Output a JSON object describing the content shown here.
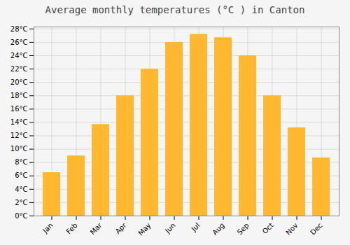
{
  "chart_data": {
    "type": "bar",
    "title": "Average monthly temperatures (°C ) in Canton",
    "categories": [
      "Jan",
      "Feb",
      "Mar",
      "Apr",
      "May",
      "Jun",
      "Jul",
      "Aug",
      "Sep",
      "Oct",
      "Nov",
      "Dec"
    ],
    "values": [
      6.5,
      9.0,
      13.7,
      18.0,
      22.0,
      26.0,
      27.2,
      26.7,
      24.0,
      18.0,
      13.2,
      8.7
    ],
    "color": "#FFB830",
    "ylim": [
      0,
      28.3
    ],
    "yticks": [
      {
        "value": 0,
        "label": "0°C"
      },
      {
        "value": 2,
        "label": "2°C"
      },
      {
        "value": 4,
        "label": "4°C"
      },
      {
        "value": 6,
        "label": "6°C"
      },
      {
        "value": 8,
        "label": "8°C"
      },
      {
        "value": 10,
        "label": "10°C"
      },
      {
        "value": 12,
        "label": "12°C"
      },
      {
        "value": 14,
        "label": "14°C"
      },
      {
        "value": 16,
        "label": "16°C"
      },
      {
        "value": 18,
        "label": "18°C"
      },
      {
        "value": 20,
        "label": "20°C"
      },
      {
        "value": 22,
        "label": "22°C"
      },
      {
        "value": 24,
        "label": "24°C"
      },
      {
        "value": 26,
        "label": "26°C"
      },
      {
        "value": 28,
        "label": "28°C"
      }
    ],
    "grid": true
  }
}
